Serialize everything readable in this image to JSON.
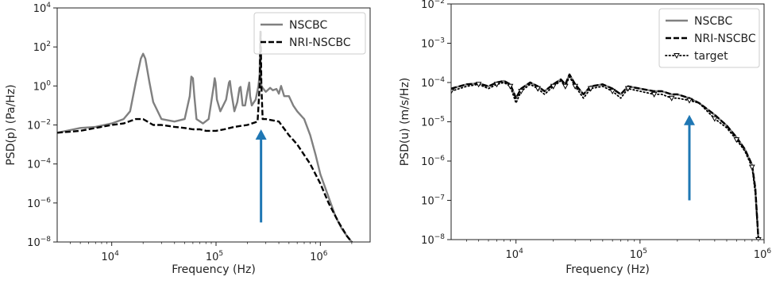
{
  "chart_data": [
    {
      "type": "line",
      "xlabel": "Frequency (Hz)",
      "ylabel": "PSD(p) (Pa/Hz)",
      "xscale": "log",
      "yscale": "log",
      "xlim": [
        3000,
        3000000
      ],
      "ylim": [
        1e-08,
        10000
      ],
      "x_ticks": [
        {
          "value": 10000,
          "base": "10",
          "exp": "4"
        },
        {
          "value": 100000,
          "base": "10",
          "exp": "5"
        },
        {
          "value": 1000000,
          "base": "10",
          "exp": "6"
        }
      ],
      "y_ticks": [
        {
          "value": 1e-08,
          "base": "10",
          "exp": "−8"
        },
        {
          "value": 1e-06,
          "base": "10",
          "exp": "−6"
        },
        {
          "value": 0.0001,
          "base": "10",
          "exp": "−4"
        },
        {
          "value": 0.01,
          "base": "10",
          "exp": "−2"
        },
        {
          "value": 1,
          "base": "10",
          "exp": "0"
        },
        {
          "value": 100,
          "base": "10",
          "exp": "2"
        },
        {
          "value": 10000,
          "base": "10",
          "exp": "4"
        }
      ],
      "legend_position": "top-right",
      "annotation_arrow": {
        "x": 270000,
        "y_from": 1e-07,
        "y_to": 0.006,
        "color": "#1f77b4"
      },
      "series": [
        {
          "name": "NSCBC",
          "color": "#808080",
          "style": "solid",
          "x": [
            3000,
            5000,
            7000,
            10000,
            13000,
            15000,
            17000,
            19000,
            20000,
            21000,
            23000,
            25000,
            30000,
            40000,
            50000,
            56000,
            58000,
            60000,
            62000,
            65000,
            75000,
            85000,
            95000,
            97000,
            99000,
            102000,
            110000,
            125000,
            133000,
            136000,
            140000,
            150000,
            160000,
            168000,
            172000,
            180000,
            190000,
            200000,
            208000,
            212000,
            220000,
            240000,
            255000,
            262000,
            265000,
            268000,
            272000,
            280000,
            300000,
            330000,
            350000,
            380000,
            400000,
            420000,
            450000,
            500000,
            550000,
            600000,
            700000,
            800000,
            900000,
            1000000,
            1200000,
            1400000,
            1600000,
            1800000,
            2000000,
            2200000
          ],
          "y": [
            0.004,
            0.007,
            0.008,
            0.012,
            0.02,
            0.05,
            1.5,
            25,
            45,
            25,
            1.5,
            0.15,
            0.02,
            0.015,
            0.02,
            0.3,
            3,
            2.5,
            0.3,
            0.02,
            0.012,
            0.02,
            1,
            2.5,
            1.5,
            0.2,
            0.05,
            0.2,
            1.5,
            1.8,
            0.5,
            0.05,
            0.15,
            0.8,
            0.9,
            0.1,
            0.1,
            0.5,
            1.5,
            0.3,
            0.1,
            0.2,
            1,
            4,
            600,
            4,
            1,
            0.8,
            0.5,
            0.8,
            0.6,
            0.7,
            0.4,
            1,
            0.3,
            0.3,
            0.1,
            0.05,
            0.02,
            0.003,
            0.0003,
            3e-05,
            2e-06,
            2e-07,
            5e-08,
            2e-08,
            1e-08,
            6e-09
          ]
        },
        {
          "name": "NRI-NSCBC",
          "color": "#000000",
          "style": "dashed",
          "x": [
            3000,
            5000,
            7000,
            10000,
            13000,
            17000,
            20000,
            25000,
            30000,
            40000,
            50000,
            60000,
            70000,
            80000,
            100000,
            120000,
            150000,
            200000,
            250000,
            262000,
            268000,
            272000,
            280000,
            300000,
            400000,
            500000,
            600000,
            800000,
            1000000,
            1200000,
            1500000,
            1800000,
            2000000,
            2200000
          ],
          "y": [
            0.004,
            0.005,
            0.007,
            0.01,
            0.012,
            0.02,
            0.02,
            0.01,
            0.01,
            0.008,
            0.007,
            0.006,
            0.006,
            0.005,
            0.005,
            0.006,
            0.008,
            0.01,
            0.015,
            1,
            600,
            1,
            0.02,
            0.02,
            0.015,
            0.003,
            0.001,
            0.0001,
            1e-05,
            1e-06,
            1e-07,
            2e-08,
            1e-08,
            6e-09
          ]
        }
      ]
    },
    {
      "type": "line",
      "xlabel": "Frequency (Hz)",
      "ylabel": "PSD(u) (m/s/Hz)",
      "xscale": "log",
      "yscale": "log",
      "xlim": [
        3000,
        1000000
      ],
      "ylim": [
        1e-08,
        0.01
      ],
      "x_ticks": [
        {
          "value": 10000,
          "base": "10",
          "exp": "4"
        },
        {
          "value": 100000,
          "base": "10",
          "exp": "5"
        },
        {
          "value": 1000000,
          "base": "10",
          "exp": "6"
        }
      ],
      "y_ticks": [
        {
          "value": 1e-08,
          "base": "10",
          "exp": "−8"
        },
        {
          "value": 1e-07,
          "base": "10",
          "exp": "−7"
        },
        {
          "value": 1e-06,
          "base": "10",
          "exp": "−6"
        },
        {
          "value": 1e-05,
          "base": "10",
          "exp": "−5"
        },
        {
          "value": 0.0001,
          "base": "10",
          "exp": "−4"
        },
        {
          "value": 0.001,
          "base": "10",
          "exp": "−3"
        },
        {
          "value": 0.01,
          "base": "10",
          "exp": "−2"
        }
      ],
      "legend_position": "top-right",
      "annotation_arrow": {
        "x": 250000,
        "y_from": 1e-07,
        "y_to": 1.5e-05,
        "color": "#1f77b4"
      },
      "series": [
        {
          "name": "NSCBC",
          "color": "#808080",
          "style": "solid",
          "x": [
            3000,
            4000,
            5000,
            6000,
            7000,
            8000,
            9000,
            10000,
            11000,
            13000,
            15000,
            17000,
            20000,
            23000,
            25000,
            27000,
            30000,
            35000,
            40000,
            50000,
            60000,
            70000,
            80000,
            100000,
            130000,
            150000,
            180000,
            200000,
            250000,
            300000,
            400000,
            500000,
            600000,
            700000,
            800000,
            850000,
            900000
          ],
          "y": [
            7e-05,
            9e-05,
            9.5e-05,
            8e-05,
            0.0001,
            0.00011,
            9e-05,
            4e-05,
            7e-05,
            0.0001,
            8e-05,
            6e-05,
            9e-05,
            0.00012,
            9e-05,
            0.00016,
            9e-05,
            5e-05,
            8e-05,
            9e-05,
            7e-05,
            5e-05,
            8e-05,
            7e-05,
            6e-05,
            6e-05,
            5e-05,
            5e-05,
            4e-05,
            3e-05,
            1.5e-05,
            8e-06,
            4e-06,
            2e-06,
            8e-07,
            2e-07,
            1e-08
          ]
        },
        {
          "name": "NRI-NSCBC",
          "color": "#000000",
          "style": "dashed",
          "x": [
            3000,
            4000,
            5000,
            6000,
            7000,
            8000,
            9000,
            10000,
            11000,
            13000,
            15000,
            17000,
            20000,
            23000,
            25000,
            27000,
            30000,
            35000,
            40000,
            50000,
            60000,
            70000,
            80000,
            100000,
            130000,
            150000,
            180000,
            200000,
            250000,
            300000,
            400000,
            500000,
            600000,
            700000,
            800000,
            850000,
            900000
          ],
          "y": [
            7e-05,
            9e-05,
            9.5e-05,
            8e-05,
            0.0001,
            0.00011,
            9e-05,
            4e-05,
            7e-05,
            0.0001,
            8e-05,
            6e-05,
            9e-05,
            0.00012,
            9e-05,
            0.00016,
            9e-05,
            5e-05,
            8e-05,
            9e-05,
            7e-05,
            5e-05,
            8e-05,
            7e-05,
            6e-05,
            6e-05,
            5e-05,
            5e-05,
            4e-05,
            3e-05,
            1.5e-05,
            8e-06,
            4e-06,
            2e-06,
            8e-07,
            2e-07,
            1e-08
          ]
        },
        {
          "name": "target",
          "color": "#000000",
          "style": "dotted-markers",
          "x": [
            3000,
            4000,
            5000,
            6000,
            7000,
            8000,
            9000,
            10000,
            11000,
            13000,
            15000,
            17000,
            20000,
            23000,
            25000,
            27000,
            30000,
            35000,
            40000,
            50000,
            60000,
            70000,
            80000,
            100000,
            130000,
            150000,
            180000,
            200000,
            250000,
            300000,
            400000,
            500000,
            600000,
            700000,
            800000,
            850000,
            900000
          ],
          "y": [
            6e-05,
            8e-05,
            9e-05,
            7e-05,
            9e-05,
            0.0001,
            8e-05,
            3e-05,
            6e-05,
            9e-05,
            7e-05,
            5e-05,
            8e-05,
            0.00011,
            8e-05,
            0.00014,
            8e-05,
            4e-05,
            7e-05,
            8e-05,
            6e-05,
            4e-05,
            7e-05,
            6e-05,
            5e-05,
            5e-05,
            4e-05,
            4e-05,
            3.5e-05,
            3e-05,
            1.2e-05,
            7e-06,
            3.5e-06,
            1.8e-06,
            7e-07,
            1.5e-07,
            1e-08
          ]
        }
      ]
    }
  ]
}
